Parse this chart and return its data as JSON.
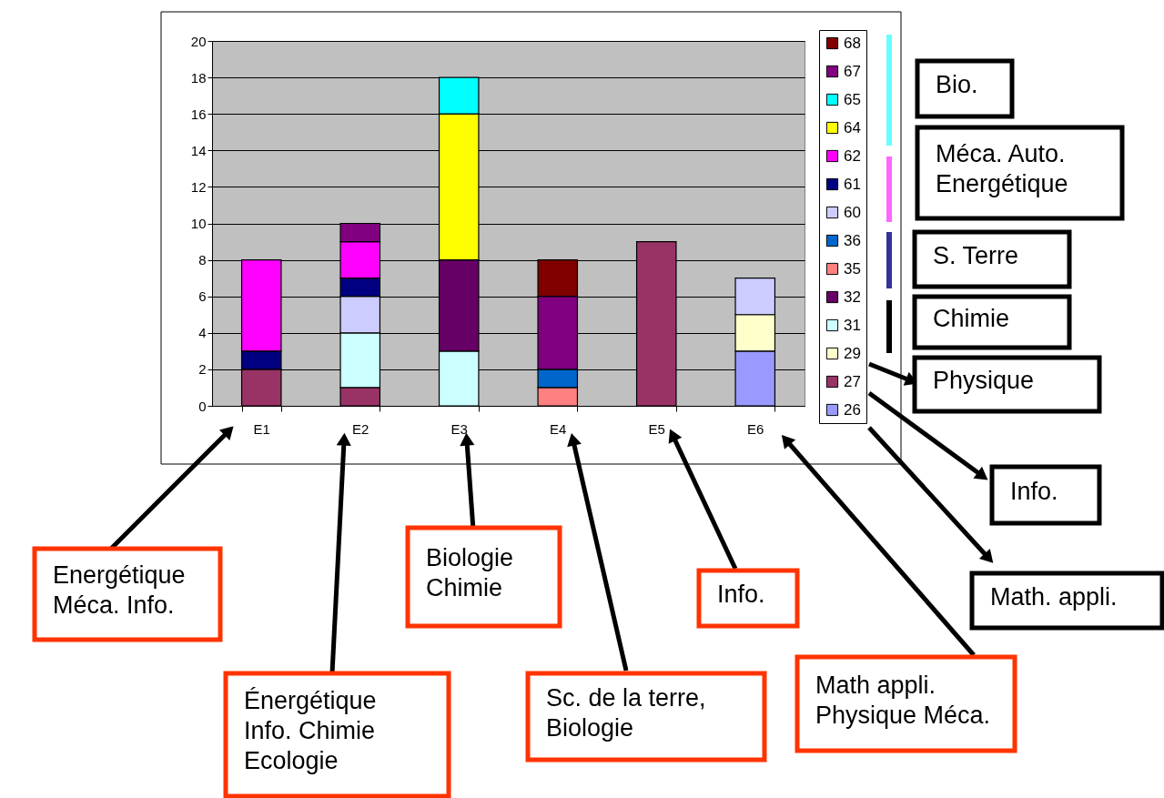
{
  "chart_data": {
    "type": "bar",
    "stacked": true,
    "categories": [
      "E1",
      "E2",
      "E3",
      "E4",
      "E5",
      "E6"
    ],
    "series": [
      {
        "name": "26",
        "color": "#9999ff",
        "values": [
          null,
          null,
          null,
          null,
          null,
          3
        ]
      },
      {
        "name": "27",
        "color": "#993366",
        "values": [
          2,
          1,
          null,
          null,
          9,
          null
        ]
      },
      {
        "name": "29",
        "color": "#ffffcc",
        "values": [
          null,
          null,
          null,
          null,
          null,
          2
        ]
      },
      {
        "name": "31",
        "color": "#ccffff",
        "values": [
          null,
          3,
          3,
          null,
          null,
          null
        ]
      },
      {
        "name": "32",
        "color": "#660066",
        "values": [
          null,
          null,
          5,
          null,
          null,
          null
        ]
      },
      {
        "name": "35",
        "color": "#ff8080",
        "values": [
          null,
          null,
          null,
          1,
          null,
          null
        ]
      },
      {
        "name": "36",
        "color": "#0066cc",
        "values": [
          null,
          null,
          null,
          1,
          null,
          null
        ]
      },
      {
        "name": "60",
        "color": "#ccccff",
        "values": [
          null,
          2,
          null,
          null,
          null,
          2
        ]
      },
      {
        "name": "61",
        "color": "#000080",
        "values": [
          1,
          1,
          null,
          null,
          null,
          null
        ]
      },
      {
        "name": "62",
        "color": "#ff00ff",
        "values": [
          5,
          2,
          null,
          null,
          null,
          null
        ]
      },
      {
        "name": "64",
        "color": "#ffff00",
        "values": [
          null,
          null,
          8,
          null,
          null,
          null
        ]
      },
      {
        "name": "65",
        "color": "#00ffff",
        "values": [
          null,
          null,
          2,
          null,
          null,
          null
        ]
      },
      {
        "name": "67",
        "color": "#800080",
        "values": [
          null,
          1,
          null,
          4,
          null,
          null
        ]
      },
      {
        "name": "68",
        "color": "#800000",
        "values": [
          null,
          null,
          null,
          2,
          null,
          null
        ]
      }
    ],
    "ylim": [
      0,
      20
    ],
    "yticks": [
      0,
      2,
      4,
      6,
      8,
      10,
      12,
      14,
      16,
      18,
      20
    ],
    "grid": "y",
    "legend": "right",
    "annotations": [
      "Bio.",
      "Méca. Auto.\nEnergétique",
      "S. Terre",
      "Chimie",
      "Physique",
      "Info.",
      "Math. appli.",
      "Energétique\nMéca. Info.",
      "Biologie\nChimie",
      "Info.",
      "Énergétique\nInfo. Chimie\nEcologie",
      "Sc. de la terre,\nBiologie",
      "Math appli.\nPhysique Méca."
    ]
  }
}
